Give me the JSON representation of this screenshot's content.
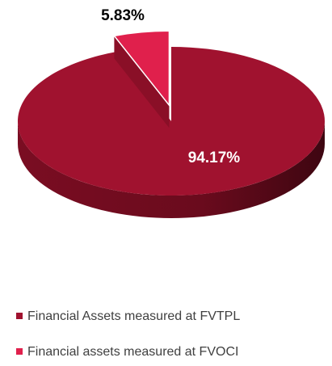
{
  "chart_data": {
    "type": "pie",
    "categories": [
      "Financial Assets measured at FVTPL",
      "Financial assets measured at FVOCI"
    ],
    "values": [
      94.17,
      5.83
    ],
    "value_labels": [
      "94.17%",
      "5.83%"
    ],
    "colors": [
      "#a0122f",
      "#e0204c"
    ],
    "legend": "bottom"
  }
}
